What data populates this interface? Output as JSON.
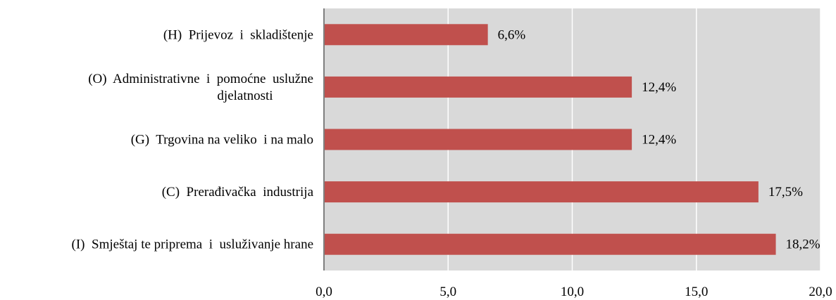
{
  "chart_data": {
    "type": "bar",
    "orientation": "horizontal",
    "categories": [
      [
        "(H)  Prijevoz  i  skladištenje"
      ],
      [
        "(O)  Administrativne  i  pomoćne  uslužne",
        "djelatnosti"
      ],
      [
        "(G)  Trgovina na veliko  i na malo"
      ],
      [
        "(C)  Prerađivačka  industrija"
      ],
      [
        "(I)  Smještaj te priprema  i  usluživanje hrane"
      ]
    ],
    "values": [
      6.6,
      12.4,
      12.4,
      17.5,
      18.2
    ],
    "data_labels": [
      "6,6%",
      "12,4%",
      "12,4%",
      "17,5%",
      "18,2%"
    ],
    "x_ticks": [
      0,
      5,
      10,
      15,
      20
    ],
    "x_tick_labels": [
      "0,0",
      "5,0",
      "10,0",
      "15,0",
      "20,0"
    ],
    "xlim": [
      0,
      20
    ],
    "grid": "vertical",
    "legend": "none",
    "colors": {
      "bar": "#c0504d",
      "plot_background": "#d9d9d9",
      "gridline": "#ffffff",
      "axis": "#7f7f7f"
    }
  }
}
